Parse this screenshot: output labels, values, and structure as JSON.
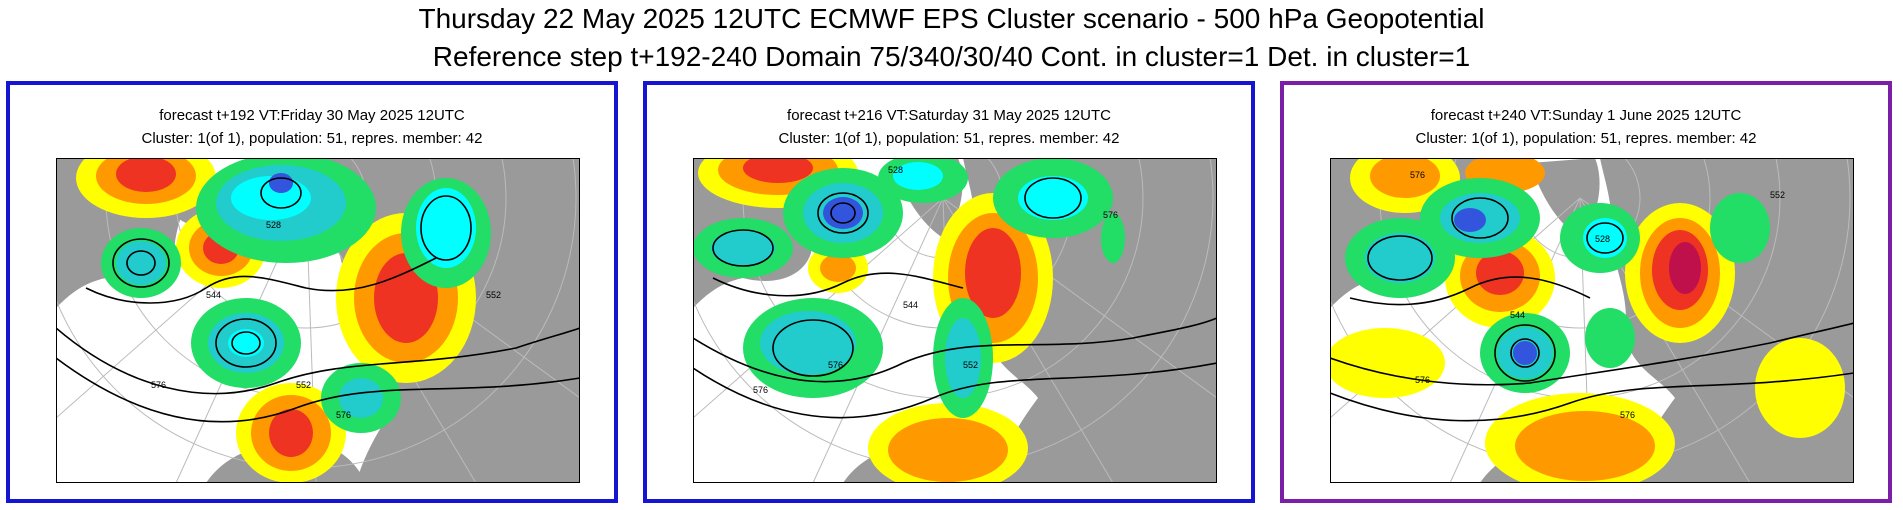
{
  "title": {
    "line1": "Thursday 22 May 2025 12UTC ECMWF EPS Cluster scenario - 500 hPa Geopotential",
    "line2": "Reference step t+192-240 Domain 75/340/30/40 Cont. in cluster=1 Det. in cluster=1"
  },
  "panels": [
    {
      "header": "forecast t+192 VT:Friday 30 May 2025 12UTC",
      "cluster": "Cluster: 1(of 1), population: 51, repres. member: 42",
      "border_color": "#1414d2",
      "contour_labels": [
        "544",
        "552",
        "576",
        "576",
        "528",
        "552"
      ]
    },
    {
      "header": "forecast t+216 VT:Saturday 31 May 2025 12UTC",
      "cluster": "Cluster: 1(of 1), population: 51, repres. member: 42",
      "border_color": "#1414d2",
      "contour_labels": [
        "528",
        "576",
        "576",
        "552",
        "544",
        "576"
      ]
    },
    {
      "header": "forecast t+240 VT:Sunday 1 June 2025 12UTC",
      "cluster": "Cluster: 1(of 1), population: 51, repres. member: 42",
      "border_color": "#7a1fa6",
      "contour_labels": [
        "576",
        "528",
        "544",
        "576",
        "576",
        "552"
      ]
    }
  ],
  "colors": {
    "land": "#9a9a9a",
    "sea": "#ffffff",
    "positive_anomaly": [
      "#ffff00",
      "#ff9900",
      "#ee3322",
      "#c0104c"
    ],
    "negative_anomaly": [
      "#22dd66",
      "#22cccc",
      "#00ffff",
      "#3355dd"
    ]
  }
}
